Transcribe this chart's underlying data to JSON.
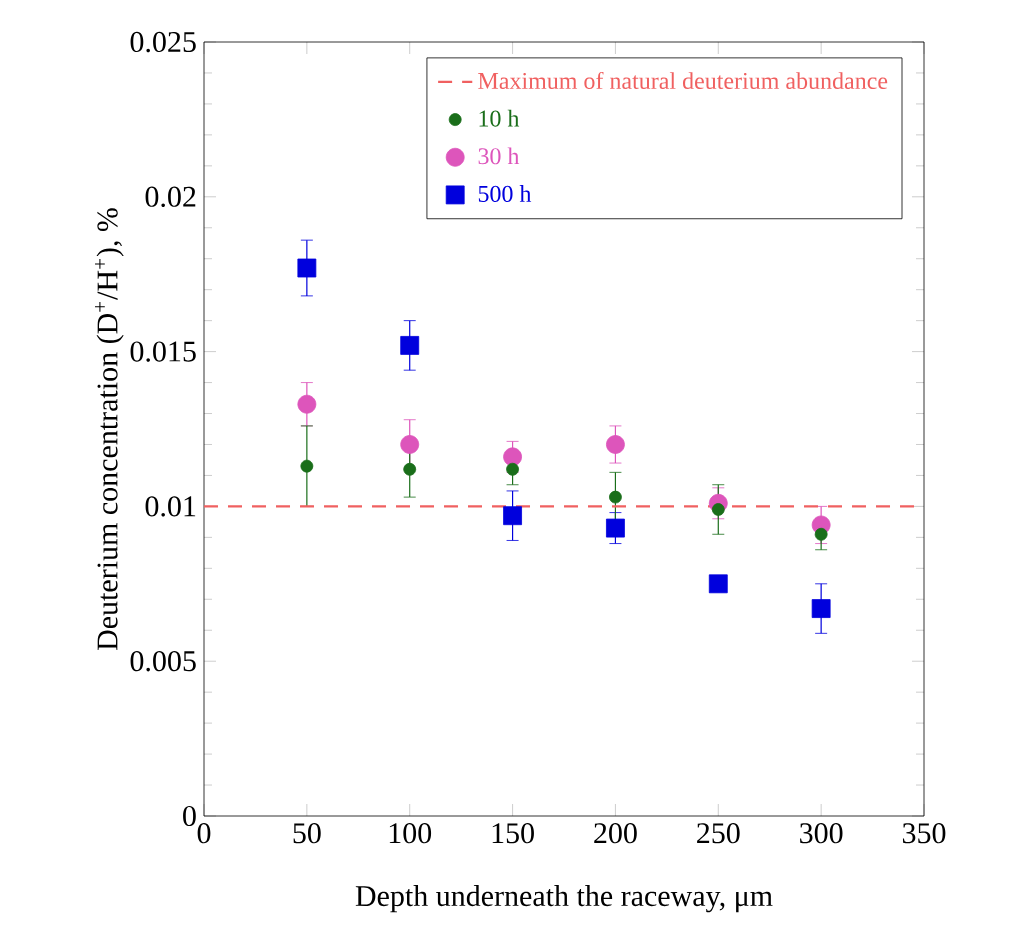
{
  "chart_data": {
    "type": "scatter",
    "xlabel": "Depth underneath the raceway, μm",
    "ylabel": "Deuterium concentration (D$^{+}$/H$^{+}$), %",
    "x": [
      50,
      100,
      150,
      200,
      250,
      300
    ],
    "series": [
      {
        "name": "10 h",
        "color": "#1a6e1a",
        "marker": "circle",
        "values": [
          0.0113,
          0.0112,
          0.0112,
          0.0103,
          0.0099,
          0.0091
        ],
        "errors": [
          0.0013,
          0.0009,
          0.0005,
          0.0008,
          0.0008,
          0.0005
        ]
      },
      {
        "name": "30 h",
        "color": "#dd55bb",
        "marker": "circle",
        "values": [
          0.0133,
          0.012,
          0.0116,
          0.012,
          0.0101,
          0.0094
        ],
        "errors": [
          0.0007,
          0.0008,
          0.0005,
          0.0006,
          0.0005,
          0.0006
        ]
      },
      {
        "name": "500 h",
        "color": "#0000dd",
        "marker": "square",
        "values": [
          0.0177,
          0.0152,
          0.0097,
          0.0093,
          0.0075,
          0.0067
        ],
        "errors": [
          0.0009,
          0.0008,
          0.0008,
          0.0005,
          0.0002,
          0.0008
        ]
      }
    ],
    "ref_lines": [
      {
        "axis": "y",
        "value": 0.01,
        "label": "Maximum of natural deuterium abundance",
        "color": "#f06060",
        "line_style": "dashed"
      }
    ],
    "xlim": [
      0,
      350
    ],
    "xticks": [
      0,
      50,
      100,
      150,
      200,
      250,
      300,
      350
    ],
    "ylim": [
      0,
      0.025
    ],
    "yticks": [
      0,
      0.005,
      0.01,
      0.015,
      0.02,
      0.025
    ],
    "grid": false,
    "legend": "top right"
  }
}
